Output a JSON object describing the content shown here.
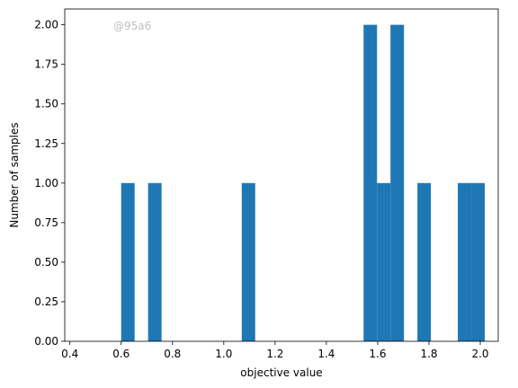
{
  "chart_data": {
    "type": "bar",
    "title": "",
    "xlabel": "objective value",
    "ylabel": "Number of samples",
    "xlim": [
      0.38,
      2.07
    ],
    "ylim": [
      0,
      2.1
    ],
    "grid": false,
    "bar_color": "#1f77b4",
    "bin_width": 0.0525,
    "bin_starts": [
      0.6,
      0.705,
      1.07,
      1.545,
      1.5975,
      1.65,
      1.755,
      1.9125,
      1.965
    ],
    "values": [
      1,
      1,
      1,
      2,
      1,
      2,
      1,
      1,
      1
    ],
    "x_ticks": [
      {
        "value": 0.4,
        "label": "0.4"
      },
      {
        "value": 0.6,
        "label": "0.6"
      },
      {
        "value": 0.8,
        "label": "0.8"
      },
      {
        "value": 1.0,
        "label": "1.0"
      },
      {
        "value": 1.2,
        "label": "1.2"
      },
      {
        "value": 1.4,
        "label": "1.4"
      },
      {
        "value": 1.6,
        "label": "1.6"
      },
      {
        "value": 1.8,
        "label": "1.8"
      },
      {
        "value": 2.0,
        "label": "2.0"
      }
    ],
    "y_ticks": [
      {
        "value": 0,
        "label": "0.00"
      },
      {
        "value": 0.25,
        "label": "0.25"
      },
      {
        "value": 0.5,
        "label": "0.50"
      },
      {
        "value": 0.75,
        "label": "0.75"
      },
      {
        "value": 1.0,
        "label": "1.00"
      },
      {
        "value": 1.25,
        "label": "1.25"
      },
      {
        "value": 1.5,
        "label": "1.50"
      },
      {
        "value": 1.75,
        "label": "1.75"
      },
      {
        "value": 2.0,
        "label": "2.00"
      }
    ],
    "annotation": "@95a6"
  }
}
